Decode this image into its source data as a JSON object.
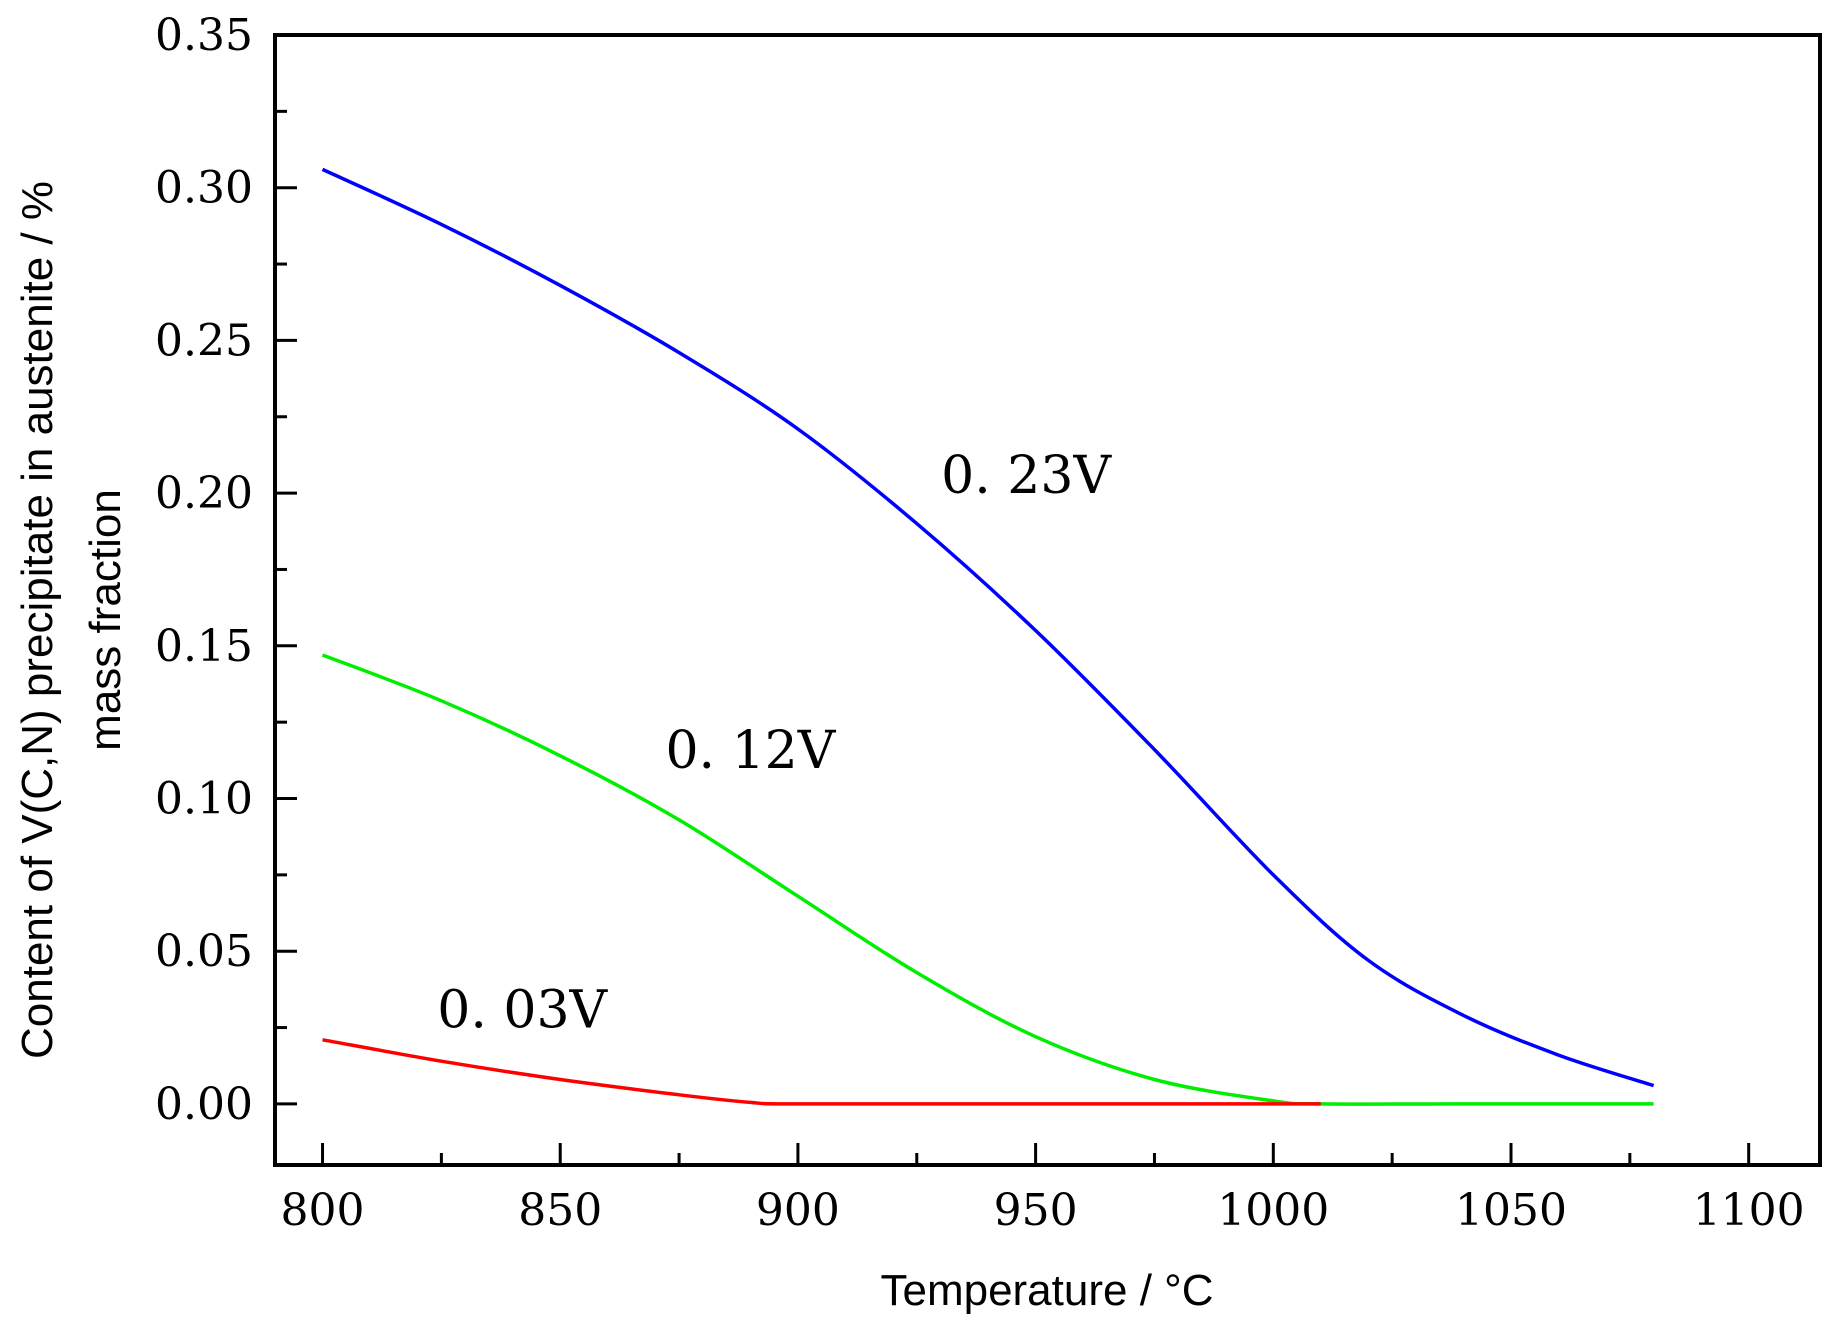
{
  "chart_data": {
    "type": "line",
    "title": "",
    "xlabel": "Temperature / °C",
    "ylabel_lines": [
      "Content of V(C,N) precipitate in austenite / %",
      "mass fraction"
    ],
    "xlim": [
      790,
      1115
    ],
    "ylim": [
      -0.02,
      0.35
    ],
    "x_ticks": [
      800,
      850,
      900,
      950,
      1000,
      1050,
      1100
    ],
    "x_tick_labels": [
      "800",
      "850",
      "900",
      "950",
      "1000",
      "1050",
      "1100"
    ],
    "y_ticks": [
      0.0,
      0.05,
      0.1,
      0.15,
      0.2,
      0.25,
      0.3,
      0.35
    ],
    "y_tick_labels": [
      "0.00",
      "0.05",
      "0.10",
      "0.15",
      "0.20",
      "0.25",
      "0.30",
      "0.35"
    ],
    "grid": false,
    "series": [
      {
        "name": "0.23V",
        "label": "0. 23V",
        "color": "#0000ff",
        "label_at": [
          948,
          0.2
        ],
        "x": [
          800,
          825,
          850,
          875,
          900,
          925,
          950,
          975,
          1000,
          1020,
          1040,
          1060,
          1080
        ],
        "y": [
          0.306,
          0.288,
          0.268,
          0.246,
          0.221,
          0.19,
          0.155,
          0.116,
          0.075,
          0.047,
          0.029,
          0.016,
          0.006
        ]
      },
      {
        "name": "0.12V",
        "label": "0. 12V",
        "color": "#00ee00",
        "label_at": [
          890,
          0.11
        ],
        "x": [
          800,
          825,
          850,
          875,
          900,
          925,
          950,
          975,
          1000,
          1010,
          1040,
          1080
        ],
        "y": [
          0.147,
          0.132,
          0.114,
          0.093,
          0.068,
          0.043,
          0.022,
          0.008,
          0.001,
          0.0,
          0.0,
          0.0
        ]
      },
      {
        "name": "0.03V",
        "label": "0. 03V",
        "color": "#ff0000",
        "label_at": [
          842,
          0.025
        ],
        "x": [
          800,
          825,
          850,
          875,
          890,
          900,
          950,
          1010
        ],
        "y": [
          0.021,
          0.014,
          0.008,
          0.003,
          0.0005,
          0.0,
          0.0,
          0.0
        ]
      }
    ]
  }
}
